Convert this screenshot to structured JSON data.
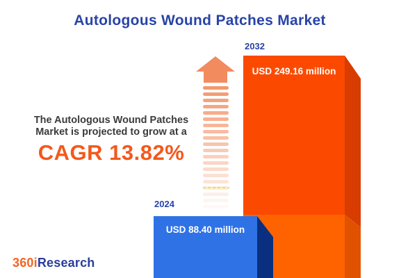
{
  "title": "Autologous Wound Patches Market",
  "description": {
    "line1": "The Autologous Wound Patches",
    "line2": "Market is projected to grow at a",
    "cagr": "CAGR 13.82%"
  },
  "chart_data": {
    "type": "bar",
    "title": "Autologous Wound Patches Market",
    "categories": [
      "2024",
      "2032"
    ],
    "values": [
      88.4,
      249.16
    ],
    "unit": "USD million",
    "value_labels": [
      "USD 88.40 million",
      "USD 249.16 million"
    ],
    "cagr_percent": 13.82,
    "legend_position": "none",
    "grid": false,
    "bar_style": "3d-extruded"
  },
  "logo": {
    "part1": "360i",
    "part2": "Research"
  },
  "colors": {
    "title_blue": "#2843A7",
    "description_text": "#3B3B3B",
    "cagr_orange": "#F4581C",
    "bar_2024_face": "#2F72E5",
    "bar_2024_side": "#0A2F80",
    "bar_2032_face_upper": "#FB4A00",
    "bar_2032_face_lower": "#FF6300",
    "bar_2032_side_upper": "#D83C00",
    "bar_2032_side_lower": "#E05200",
    "bar_label_text": "#FFFFFF",
    "arrow_salmon": "#F28C5E",
    "yellow_dash_line": "#EDED27",
    "logo_orange": "#F26522",
    "logo_blue": "#28409B",
    "background": "#FFFFFF"
  }
}
